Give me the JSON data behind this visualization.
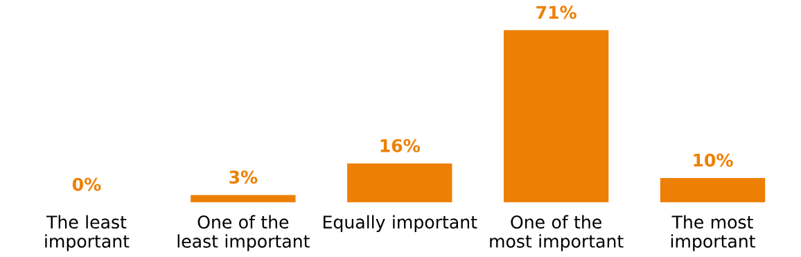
{
  "chart_data": {
    "type": "bar",
    "categories": [
      "The least important",
      "One of the least important",
      "Equally important",
      "One of the most important",
      "The most important"
    ],
    "values": [
      0,
      3,
      16,
      71,
      10
    ],
    "value_labels": [
      "0%",
      "3%",
      "16%",
      "71%",
      "10%"
    ],
    "color": "#ed8004"
  }
}
